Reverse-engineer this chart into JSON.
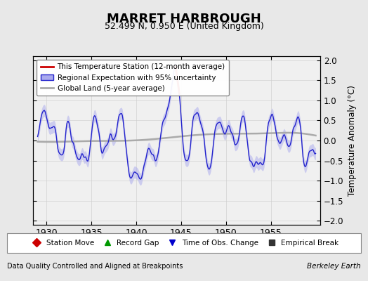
{
  "title": "MARRET HARBROUGH",
  "subtitle": "52.499 N, 0.950 E (United Kingdom)",
  "ylabel": "Temperature Anomaly (°C)",
  "xlabel_note": "Data Quality Controlled and Aligned at Breakpoints",
  "credit": "Berkeley Earth",
  "xlim": [
    1928.5,
    1960.5
  ],
  "ylim": [
    -2.1,
    2.1
  ],
  "yticks": [
    -2,
    -1.5,
    -1,
    -0.5,
    0,
    0.5,
    1,
    1.5,
    2
  ],
  "xticks": [
    1930,
    1935,
    1940,
    1945,
    1950,
    1955
  ],
  "marker_items": [
    {
      "label": "Station Move",
      "marker": "D",
      "color": "#cc0000"
    },
    {
      "label": "Record Gap",
      "marker": "^",
      "color": "#009900"
    },
    {
      "label": "Time of Obs. Change",
      "marker": "v",
      "color": "#0000cc"
    },
    {
      "label": "Empirical Break",
      "marker": "s",
      "color": "#333333"
    }
  ],
  "bg_color": "#e8e8e8",
  "plot_bg": "#f0f0f0",
  "grid_color": "#cccccc",
  "blue_line_color": "#2222cc",
  "blue_fill_color": "#aaaaee",
  "red_line_color": "#cc0000",
  "gray_line_color": "#aaaaaa"
}
